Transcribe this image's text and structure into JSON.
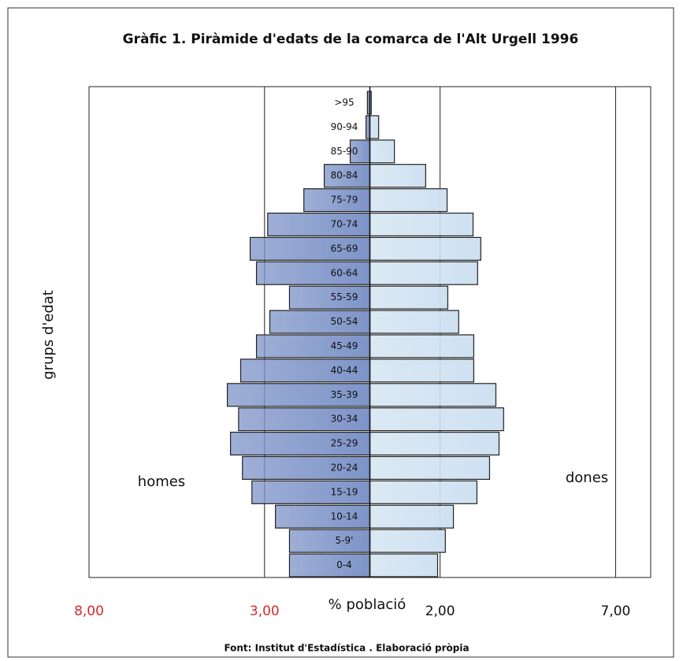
{
  "chart_data": {
    "type": "pyramid",
    "title": "Gràfic 1. Piràmide d'edats de la comarca de l'Alt Urgell 1996",
    "xlabel": "% població",
    "ylabel": "grups d'edat",
    "source": "Font: Institut d'Estadística . Elaboració pròpia",
    "categories": [
      "0-4",
      "5-9'",
      "10-14",
      "15-19",
      "20-24",
      "25-29",
      "30-34",
      "35-39",
      "40-44",
      "45-49",
      "50-54",
      "55-59",
      "60-64",
      "65-69",
      "70-74",
      "75-79",
      "80-84",
      "85-90",
      "90-94",
      ">95"
    ],
    "series": [
      {
        "name": "homes",
        "side": "left",
        "color": "#7e94c8",
        "values": [
          2.29,
          2.29,
          2.69,
          3.36,
          3.63,
          3.97,
          3.74,
          4.06,
          3.68,
          3.23,
          2.85,
          2.29,
          3.23,
          3.41,
          2.91,
          1.88,
          1.3,
          0.56,
          0.11,
          0.07
        ]
      },
      {
        "name": "dones",
        "side": "right",
        "color": "#cfe1f1",
        "values": [
          1.93,
          2.15,
          2.38,
          3.05,
          3.41,
          3.68,
          3.81,
          3.59,
          2.96,
          2.96,
          2.53,
          2.22,
          3.07,
          3.16,
          2.94,
          2.2,
          1.59,
          0.7,
          0.25,
          0.04
        ]
      }
    ],
    "xlim": [
      -8,
      8
    ],
    "xticks": [
      {
        "value": -8,
        "label": "8,00"
      },
      {
        "value": -3,
        "label": "3,00"
      },
      {
        "value": 2,
        "label": "2,00"
      },
      {
        "value": 7,
        "label": "7,00"
      }
    ],
    "negative_tick_color": "#d42a2a",
    "grid": true
  }
}
